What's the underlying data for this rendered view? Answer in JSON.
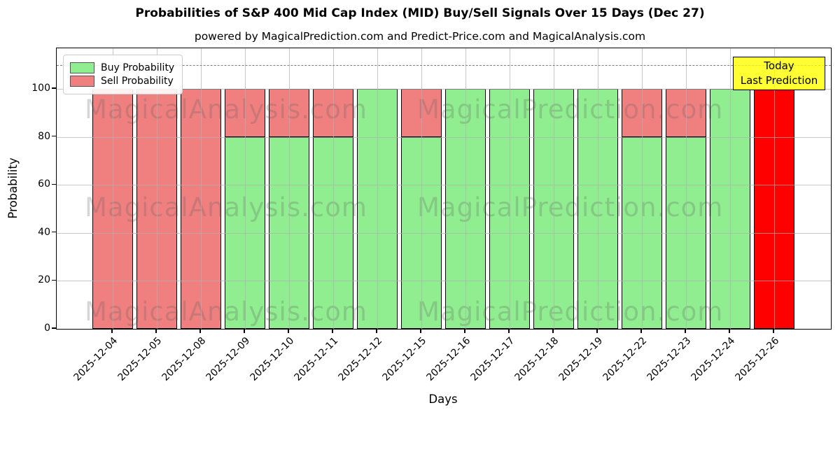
{
  "header": {
    "title": "Probabilities of S&P 400 Mid Cap Index (MID) Buy/Sell Signals Over 15 Days (Dec 27)",
    "subtitle": "powered by MagicalPrediction.com and Predict-Price.com and MagicalAnalysis.com"
  },
  "legend": {
    "items": [
      {
        "label": "Buy Probability",
        "color": "#90ee90"
      },
      {
        "label": "Sell Probability",
        "color": "#f08080"
      }
    ]
  },
  "annotation": {
    "line1": "Today",
    "line2": "Last Prediction",
    "bg_color": "#ffff00"
  },
  "watermarks": {
    "left_text": "MagicalAnalysis.com",
    "right_text": "MagicalPrediction.com"
  },
  "axes": {
    "ylabel": "Probability",
    "xlabel": "Days",
    "yticks": [
      0,
      20,
      40,
      60,
      80,
      100
    ],
    "ylim": [
      0,
      116.9
    ],
    "grid": true,
    "threshold_dashed_line_y": 110
  },
  "chart_data": {
    "type": "bar",
    "stacked": true,
    "title": "Probabilities of S&P 400 Mid Cap Index (MID) Buy/Sell Signals Over 15 Days (Dec 27)",
    "xlabel": "Days",
    "ylabel": "Probability",
    "ylim": [
      0,
      116.9
    ],
    "legend_position": "upper left",
    "categories": [
      "2025-12-04",
      "2025-12-05",
      "2025-12-08",
      "2025-12-09",
      "2025-12-10",
      "2025-12-11",
      "2025-12-12",
      "2025-12-15",
      "2025-12-16",
      "2025-12-17",
      "2025-12-18",
      "2025-12-19",
      "2025-12-22",
      "2025-12-23",
      "2025-12-24",
      "2025-12-26"
    ],
    "series": [
      {
        "name": "Buy Probability",
        "color": "#90ee90",
        "values": [
          0,
          0,
          0,
          80,
          80,
          80,
          100,
          80,
          100,
          100,
          100,
          100,
          80,
          80,
          100,
          0
        ]
      },
      {
        "name": "Sell Probability",
        "color": "#f08080",
        "values": [
          100,
          100,
          100,
          20,
          20,
          20,
          0,
          20,
          0,
          0,
          0,
          0,
          20,
          20,
          0,
          100
        ]
      }
    ],
    "today_index": 15,
    "today_color": "#ff0000",
    "bar_edge_color": "#000000",
    "grid_color": "#b0b0b0"
  }
}
